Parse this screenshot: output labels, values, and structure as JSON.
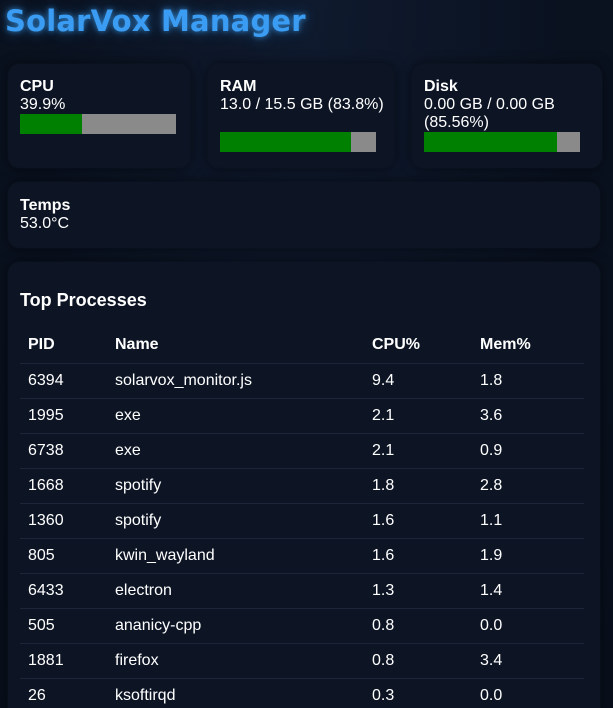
{
  "app": {
    "title": "SolarVox Manager"
  },
  "stats": {
    "cpu": {
      "label": "CPU",
      "value": "39.9%",
      "percent": 39.9
    },
    "ram": {
      "label": "RAM",
      "value": "13.0 / 15.5 GB (83.8%)",
      "percent": 83.8
    },
    "disk": {
      "label": "Disk",
      "value": "0.00 GB / 0.00 GB (85.56%)",
      "percent": 85.56
    },
    "temps": {
      "label": "Temps",
      "value": "53.0°C"
    }
  },
  "colors": {
    "accent": "#3a9cf2",
    "bar_fill": "#008000",
    "bar_track": "#8a8a8a"
  },
  "processes": {
    "title": "Top Processes",
    "headers": {
      "pid": "PID",
      "name": "Name",
      "cpu": "CPU%",
      "mem": "Mem%"
    },
    "rows": [
      {
        "pid": "6394",
        "name": "solarvox_monitor.js",
        "cpu": "9.4",
        "mem": "1.8"
      },
      {
        "pid": "1995",
        "name": "exe",
        "cpu": "2.1",
        "mem": "3.6"
      },
      {
        "pid": "6738",
        "name": "exe",
        "cpu": "2.1",
        "mem": "0.9"
      },
      {
        "pid": "1668",
        "name": "spotify",
        "cpu": "1.8",
        "mem": "2.8"
      },
      {
        "pid": "1360",
        "name": "spotify",
        "cpu": "1.6",
        "mem": "1.1"
      },
      {
        "pid": "805",
        "name": "kwin_wayland",
        "cpu": "1.6",
        "mem": "1.9"
      },
      {
        "pid": "6433",
        "name": "electron",
        "cpu": "1.3",
        "mem": "1.4"
      },
      {
        "pid": "505",
        "name": "ananicy-cpp",
        "cpu": "0.8",
        "mem": "0.0"
      },
      {
        "pid": "1881",
        "name": "firefox",
        "cpu": "0.8",
        "mem": "3.4"
      },
      {
        "pid": "26",
        "name": "ksoftirqd",
        "cpu": "0.3",
        "mem": "0.0"
      }
    ]
  }
}
